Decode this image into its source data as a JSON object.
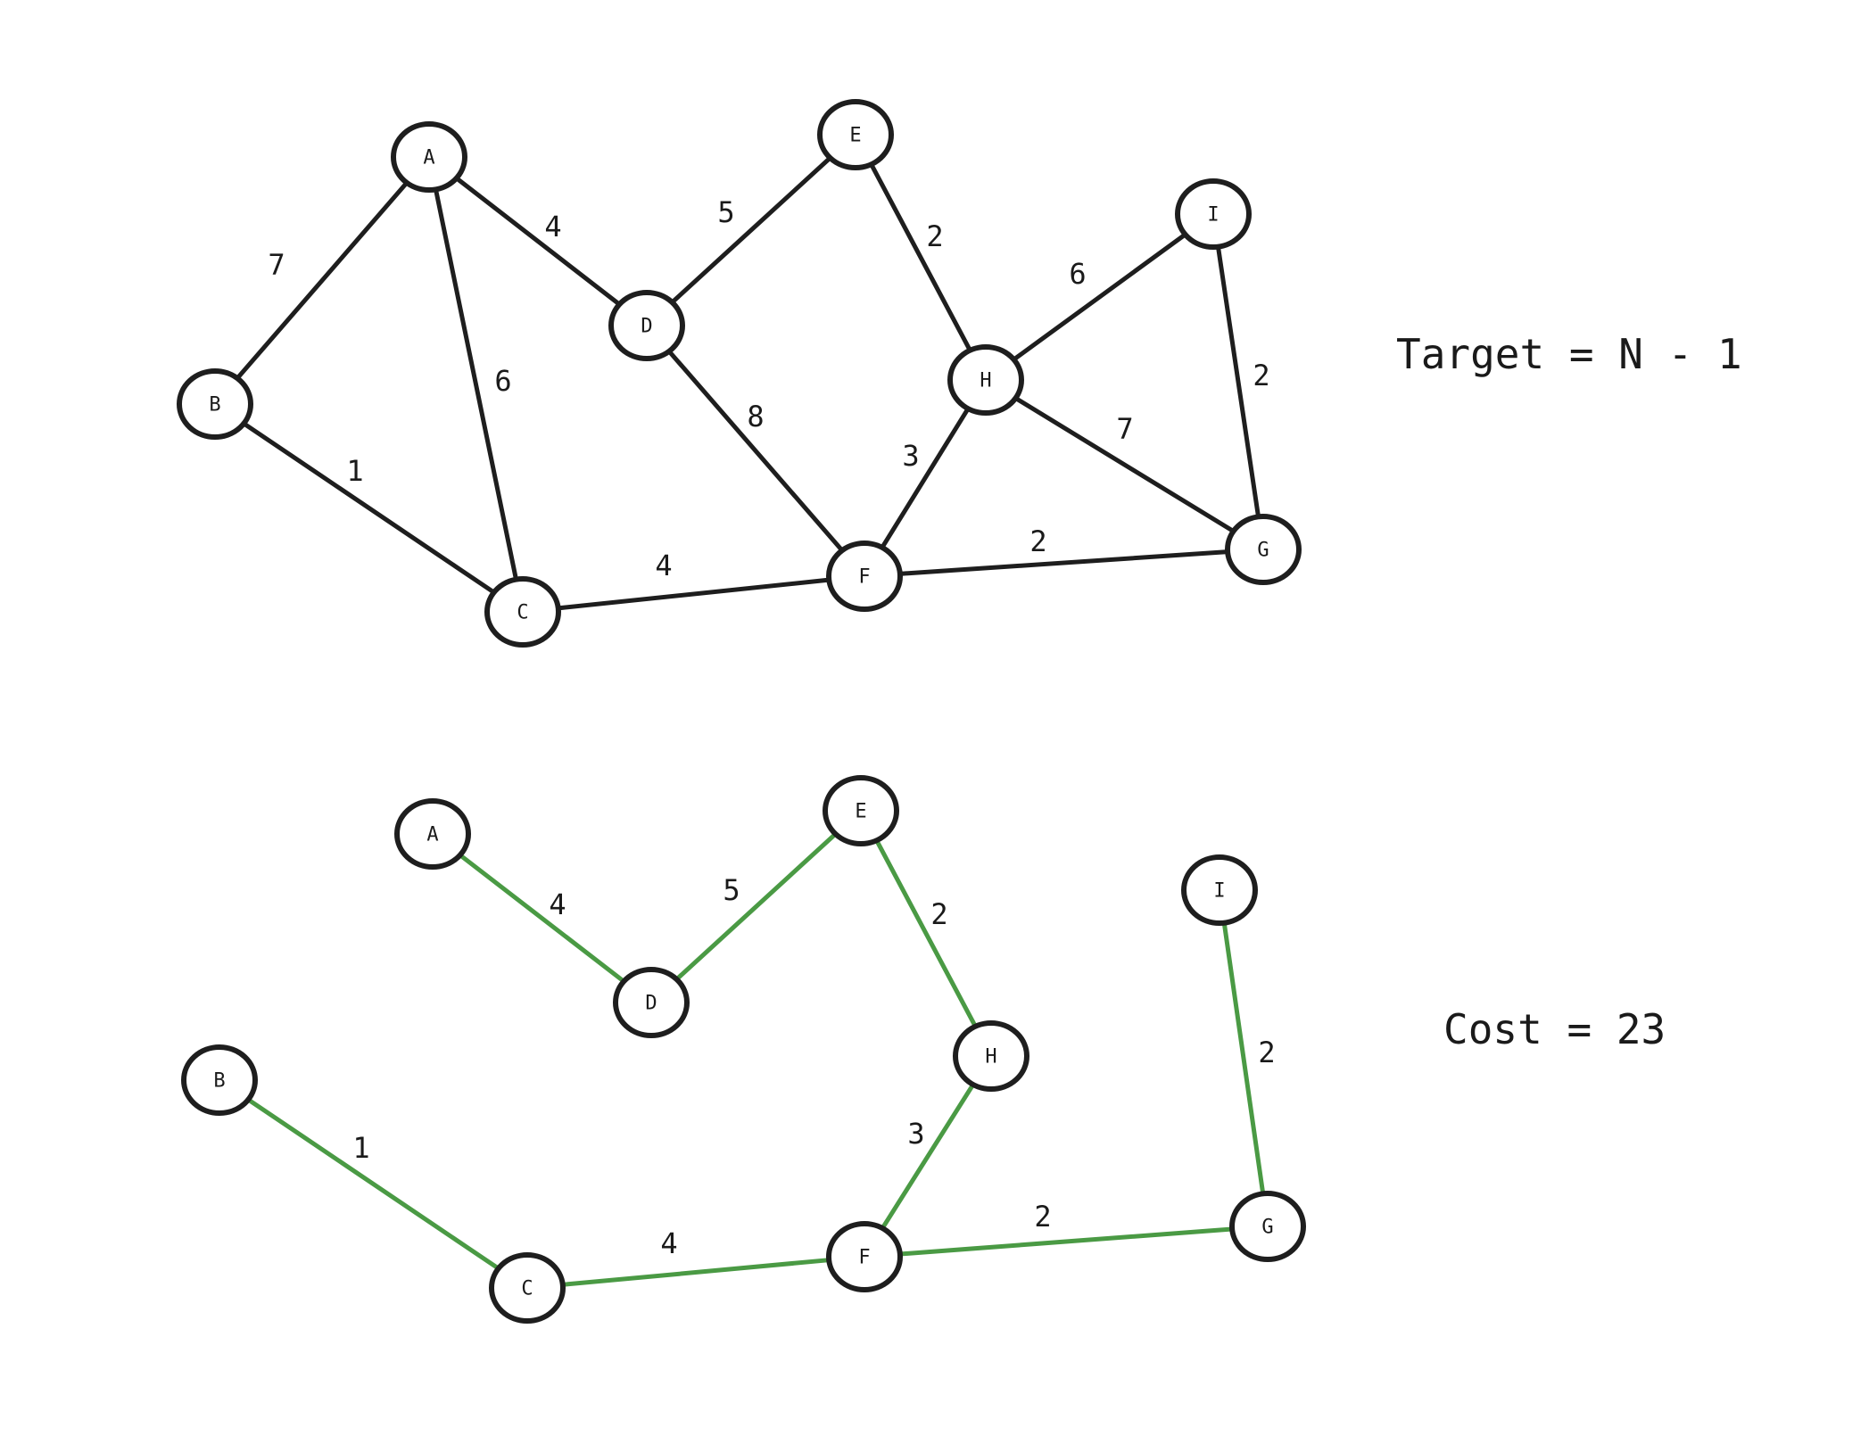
{
  "colors": {
    "graph_edge": "#1e1e1e",
    "mst_edge": "#4a9a44",
    "node_stroke": "#1e1e1e",
    "node_fill": "#ffffff"
  },
  "graph": {
    "nodes": [
      "A",
      "B",
      "C",
      "D",
      "E",
      "F",
      "G",
      "H",
      "I"
    ],
    "edges": [
      {
        "u": "A",
        "v": "B",
        "w": "7"
      },
      {
        "u": "A",
        "v": "C",
        "w": "6"
      },
      {
        "u": "A",
        "v": "D",
        "w": "4"
      },
      {
        "u": "B",
        "v": "C",
        "w": "1"
      },
      {
        "u": "D",
        "v": "E",
        "w": "5"
      },
      {
        "u": "D",
        "v": "F",
        "w": "8"
      },
      {
        "u": "E",
        "v": "H",
        "w": "2"
      },
      {
        "u": "H",
        "v": "I",
        "w": "6"
      },
      {
        "u": "I",
        "v": "G",
        "w": "2"
      },
      {
        "u": "H",
        "v": "F",
        "w": "3"
      },
      {
        "u": "H",
        "v": "G",
        "w": "7"
      },
      {
        "u": "C",
        "v": "F",
        "w": "4"
      },
      {
        "u": "F",
        "v": "G",
        "w": "2"
      }
    ],
    "caption": "Target = N - 1"
  },
  "mst": {
    "nodes": [
      "A",
      "B",
      "C",
      "D",
      "E",
      "F",
      "G",
      "H",
      "I"
    ],
    "edges": [
      {
        "u": "A",
        "v": "D",
        "w": "4"
      },
      {
        "u": "D",
        "v": "E",
        "w": "5"
      },
      {
        "u": "E",
        "v": "H",
        "w": "2"
      },
      {
        "u": "I",
        "v": "G",
        "w": "2"
      },
      {
        "u": "B",
        "v": "C",
        "w": "1"
      },
      {
        "u": "H",
        "v": "F",
        "w": "3"
      },
      {
        "u": "C",
        "v": "F",
        "w": "4"
      },
      {
        "u": "F",
        "v": "G",
        "w": "2"
      }
    ],
    "caption": "Cost = 23"
  }
}
